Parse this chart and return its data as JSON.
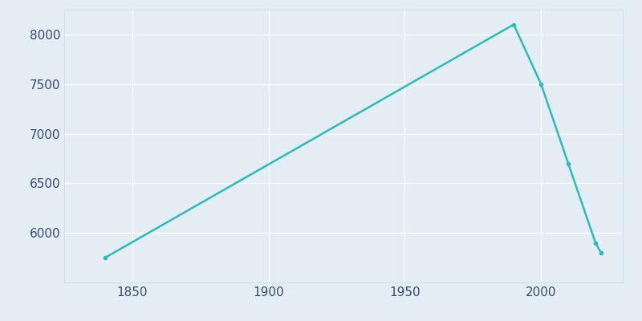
{
  "years": [
    1840,
    1990,
    2000,
    2010,
    2020,
    2022
  ],
  "population": [
    5750,
    8100,
    7500,
    6700,
    5900,
    5800
  ],
  "line_color": "#2bbcb8",
  "marker": "o",
  "marker_size": 3,
  "line_width": 1.8,
  "background_color": "#e4ecf4",
  "grid_color": "#ffffff",
  "tick_color": "#3a4a6b",
  "spine_color": "#c8d8e8",
  "xlim": [
    1825,
    2030
  ],
  "ylim": [
    5500,
    8250
  ],
  "xticks": [
    1850,
    1900,
    1950,
    2000
  ],
  "yticks": [
    6000,
    6500,
    7000,
    7500,
    8000
  ],
  "xlabel": "",
  "ylabel": ""
}
